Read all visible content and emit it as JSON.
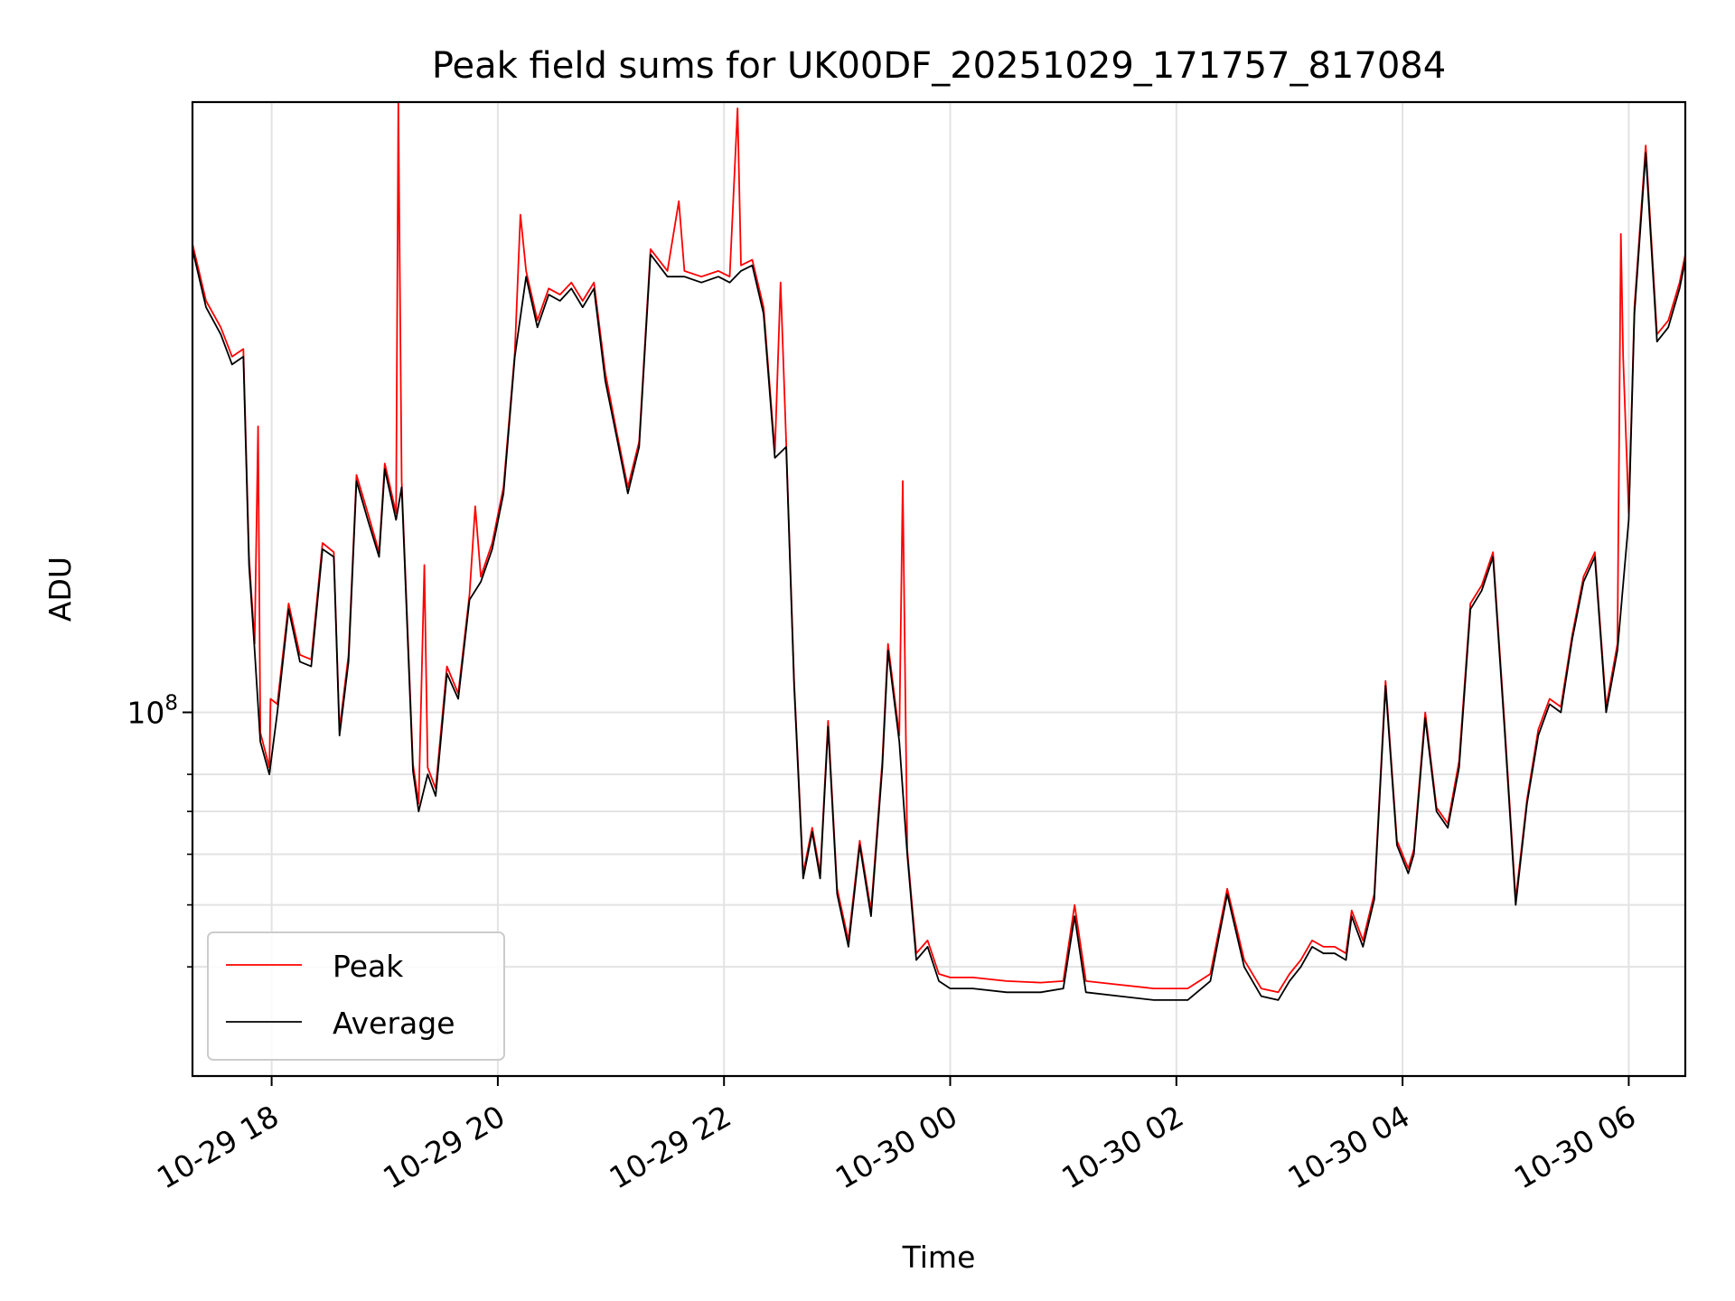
{
  "chart_data": {
    "type": "line",
    "title": "Peak field sums for UK00DF_20251029_171757_817084",
    "xlabel": "Time",
    "ylabel": "ADU",
    "yscale": "log",
    "grid": true,
    "x_unit": "hours since 2025-10-29 17:00",
    "xlim": [
      17.3,
      30.5
    ],
    "ylim": [
      27000000,
      900000000
    ],
    "x_ticks": [
      {
        "value": 18,
        "label": "10-29 18"
      },
      {
        "value": 20,
        "label": "10-29 20"
      },
      {
        "value": 22,
        "label": "10-29 22"
      },
      {
        "value": 24,
        "label": "10-30 00"
      },
      {
        "value": 26,
        "label": "10-30 02"
      },
      {
        "value": 28,
        "label": "10-30 04"
      },
      {
        "value": 30,
        "label": "10-30 06"
      }
    ],
    "y_major_ticks": [
      {
        "value": 100000000,
        "base": "10",
        "exp": "8"
      }
    ],
    "y_minor_ticks": [
      40000000,
      50000000,
      60000000,
      70000000,
      80000000
    ],
    "legend": {
      "placement": "lower-left",
      "entries": [
        "Peak",
        "Average"
      ]
    },
    "series": [
      {
        "name": "Average",
        "color": "#000000",
        "points": [
          [
            17.3,
            530000000
          ],
          [
            17.42,
            430000000
          ],
          [
            17.55,
            390000000
          ],
          [
            17.65,
            350000000
          ],
          [
            17.75,
            360000000
          ],
          [
            17.8,
            170000000
          ],
          [
            17.85,
            125000000
          ],
          [
            17.9,
            90000000
          ],
          [
            17.98,
            80000000
          ],
          [
            18.05,
            100000000
          ],
          [
            18.15,
            145000000
          ],
          [
            18.25,
            120000000
          ],
          [
            18.35,
            118000000
          ],
          [
            18.45,
            180000000
          ],
          [
            18.55,
            175000000
          ],
          [
            18.6,
            92000000
          ],
          [
            18.68,
            120000000
          ],
          [
            18.75,
            230000000
          ],
          [
            18.85,
            200000000
          ],
          [
            18.95,
            175000000
          ],
          [
            19.0,
            240000000
          ],
          [
            19.1,
            200000000
          ],
          [
            19.15,
            225000000
          ],
          [
            19.25,
            81000000
          ],
          [
            19.3,
            70000000
          ],
          [
            19.38,
            80000000
          ],
          [
            19.45,
            74000000
          ],
          [
            19.55,
            115000000
          ],
          [
            19.65,
            105000000
          ],
          [
            19.75,
            150000000
          ],
          [
            19.85,
            160000000
          ],
          [
            19.95,
            180000000
          ],
          [
            20.05,
            220000000
          ],
          [
            20.15,
            360000000
          ],
          [
            20.25,
            480000000
          ],
          [
            20.35,
            400000000
          ],
          [
            20.45,
            450000000
          ],
          [
            20.55,
            440000000
          ],
          [
            20.65,
            460000000
          ],
          [
            20.75,
            430000000
          ],
          [
            20.85,
            460000000
          ],
          [
            20.95,
            330000000
          ],
          [
            21.05,
            270000000
          ],
          [
            21.15,
            220000000
          ],
          [
            21.25,
            260000000
          ],
          [
            21.35,
            520000000
          ],
          [
            21.5,
            480000000
          ],
          [
            21.65,
            480000000
          ],
          [
            21.8,
            470000000
          ],
          [
            21.95,
            480000000
          ],
          [
            22.05,
            470000000
          ],
          [
            22.15,
            490000000
          ],
          [
            22.25,
            500000000
          ],
          [
            22.35,
            420000000
          ],
          [
            22.45,
            250000000
          ],
          [
            22.55,
            260000000
          ],
          [
            22.62,
            110000000
          ],
          [
            22.7,
            55000000
          ],
          [
            22.78,
            65000000
          ],
          [
            22.85,
            55000000
          ],
          [
            22.92,
            95000000
          ],
          [
            23.0,
            52000000
          ],
          [
            23.1,
            43000000
          ],
          [
            23.2,
            62000000
          ],
          [
            23.3,
            48000000
          ],
          [
            23.4,
            82000000
          ],
          [
            23.45,
            125000000
          ],
          [
            23.55,
            90000000
          ],
          [
            23.62,
            60000000
          ],
          [
            23.7,
            41000000
          ],
          [
            23.8,
            43000000
          ],
          [
            23.9,
            38000000
          ],
          [
            24.0,
            37000000
          ],
          [
            24.2,
            37000000
          ],
          [
            24.5,
            36500000
          ],
          [
            24.8,
            36500000
          ],
          [
            25.0,
            37000000
          ],
          [
            25.1,
            48000000
          ],
          [
            25.2,
            36500000
          ],
          [
            25.5,
            36000000
          ],
          [
            25.8,
            35500000
          ],
          [
            26.1,
            35500000
          ],
          [
            26.3,
            38000000
          ],
          [
            26.45,
            52000000
          ],
          [
            26.6,
            40000000
          ],
          [
            26.75,
            36000000
          ],
          [
            26.9,
            35500000
          ],
          [
            27.0,
            38000000
          ],
          [
            27.1,
            40000000
          ],
          [
            27.2,
            43000000
          ],
          [
            27.3,
            42000000
          ],
          [
            27.4,
            42000000
          ],
          [
            27.5,
            41000000
          ],
          [
            27.55,
            48000000
          ],
          [
            27.65,
            43000000
          ],
          [
            27.75,
            51000000
          ],
          [
            27.85,
            110000000
          ],
          [
            27.95,
            62000000
          ],
          [
            28.05,
            56000000
          ],
          [
            28.1,
            60000000
          ],
          [
            28.2,
            98000000
          ],
          [
            28.3,
            70000000
          ],
          [
            28.4,
            66000000
          ],
          [
            28.5,
            82000000
          ],
          [
            28.6,
            145000000
          ],
          [
            28.7,
            155000000
          ],
          [
            28.8,
            175000000
          ],
          [
            28.9,
            95000000
          ],
          [
            29.0,
            50000000
          ],
          [
            29.1,
            72000000
          ],
          [
            29.2,
            92000000
          ],
          [
            29.3,
            103000000
          ],
          [
            29.4,
            100000000
          ],
          [
            29.5,
            130000000
          ],
          [
            29.6,
            160000000
          ],
          [
            29.7,
            175000000
          ],
          [
            29.8,
            100000000
          ],
          [
            29.9,
            125000000
          ],
          [
            30.0,
            200000000
          ],
          [
            30.05,
            420000000
          ],
          [
            30.15,
            750000000
          ],
          [
            30.25,
            380000000
          ],
          [
            30.35,
            400000000
          ],
          [
            30.45,
            460000000
          ],
          [
            30.5,
            510000000
          ]
        ]
      },
      {
        "name": "Peak",
        "color": "#ff0000",
        "points": [
          [
            17.3,
            540000000
          ],
          [
            17.42,
            440000000
          ],
          [
            17.55,
            400000000
          ],
          [
            17.65,
            360000000
          ],
          [
            17.75,
            370000000
          ],
          [
            17.8,
            175000000
          ],
          [
            17.85,
            128000000
          ],
          [
            17.88,
            280000000
          ],
          [
            17.9,
            93000000
          ],
          [
            17.98,
            82000000
          ],
          [
            17.99,
            105000000
          ],
          [
            18.05,
            103000000
          ],
          [
            18.15,
            148000000
          ],
          [
            18.25,
            123000000
          ],
          [
            18.35,
            121000000
          ],
          [
            18.45,
            184000000
          ],
          [
            18.55,
            178000000
          ],
          [
            18.6,
            94000000
          ],
          [
            18.68,
            123000000
          ],
          [
            18.75,
            235000000
          ],
          [
            18.85,
            205000000
          ],
          [
            18.95,
            178000000
          ],
          [
            19.0,
            245000000
          ],
          [
            19.1,
            205000000
          ],
          [
            19.12,
            900000000
          ],
          [
            19.15,
            230000000
          ],
          [
            19.25,
            83000000
          ],
          [
            19.3,
            72000000
          ],
          [
            19.35,
            170000000
          ],
          [
            19.38,
            82000000
          ],
          [
            19.45,
            76000000
          ],
          [
            19.55,
            118000000
          ],
          [
            19.65,
            107000000
          ],
          [
            19.75,
            153000000
          ],
          [
            19.8,
            210000000
          ],
          [
            19.85,
            163000000
          ],
          [
            19.95,
            184000000
          ],
          [
            20.05,
            225000000
          ],
          [
            20.15,
            365000000
          ],
          [
            20.2,
            600000000
          ],
          [
            20.25,
            490000000
          ],
          [
            20.35,
            410000000
          ],
          [
            20.45,
            460000000
          ],
          [
            20.55,
            450000000
          ],
          [
            20.65,
            470000000
          ],
          [
            20.75,
            440000000
          ],
          [
            20.85,
            470000000
          ],
          [
            20.95,
            340000000
          ],
          [
            21.05,
            275000000
          ],
          [
            21.15,
            225000000
          ],
          [
            21.25,
            265000000
          ],
          [
            21.35,
            530000000
          ],
          [
            21.5,
            490000000
          ],
          [
            21.6,
            630000000
          ],
          [
            21.65,
            490000000
          ],
          [
            21.8,
            480000000
          ],
          [
            21.95,
            490000000
          ],
          [
            22.05,
            480000000
          ],
          [
            22.12,
            880000000
          ],
          [
            22.15,
            500000000
          ],
          [
            22.25,
            510000000
          ],
          [
            22.35,
            430000000
          ],
          [
            22.45,
            255000000
          ],
          [
            22.5,
            470000000
          ],
          [
            22.55,
            265000000
          ],
          [
            22.62,
            112000000
          ],
          [
            22.7,
            56000000
          ],
          [
            22.78,
            66000000
          ],
          [
            22.85,
            56000000
          ],
          [
            22.92,
            97000000
          ],
          [
            23.0,
            53000000
          ],
          [
            23.1,
            44000000
          ],
          [
            23.2,
            63000000
          ],
          [
            23.3,
            49000000
          ],
          [
            23.4,
            84000000
          ],
          [
            23.45,
            128000000
          ],
          [
            23.55,
            92000000
          ],
          [
            23.58,
            230000000
          ],
          [
            23.62,
            61000000
          ],
          [
            23.7,
            42000000
          ],
          [
            23.8,
            44000000
          ],
          [
            23.9,
            39000000
          ],
          [
            24.0,
            38500000
          ],
          [
            24.2,
            38500000
          ],
          [
            24.5,
            38000000
          ],
          [
            24.8,
            37800000
          ],
          [
            25.0,
            38000000
          ],
          [
            25.1,
            50000000
          ],
          [
            25.2,
            38000000
          ],
          [
            25.5,
            37500000
          ],
          [
            25.8,
            37000000
          ],
          [
            26.1,
            37000000
          ],
          [
            26.3,
            39000000
          ],
          [
            26.45,
            53000000
          ],
          [
            26.6,
            41000000
          ],
          [
            26.75,
            37000000
          ],
          [
            26.9,
            36500000
          ],
          [
            27.0,
            39000000
          ],
          [
            27.1,
            41000000
          ],
          [
            27.2,
            44000000
          ],
          [
            27.3,
            43000000
          ],
          [
            27.4,
            43000000
          ],
          [
            27.5,
            42000000
          ],
          [
            27.55,
            49000000
          ],
          [
            27.65,
            44000000
          ],
          [
            27.75,
            52000000
          ],
          [
            27.85,
            112000000
          ],
          [
            27.95,
            63000000
          ],
          [
            28.05,
            57000000
          ],
          [
            28.1,
            61000000
          ],
          [
            28.2,
            100000000
          ],
          [
            28.3,
            71000000
          ],
          [
            28.4,
            67000000
          ],
          [
            28.5,
            84000000
          ],
          [
            28.6,
            148000000
          ],
          [
            28.7,
            158000000
          ],
          [
            28.8,
            178000000
          ],
          [
            28.9,
            97000000
          ],
          [
            29.0,
            51000000
          ],
          [
            29.1,
            73000000
          ],
          [
            29.2,
            94000000
          ],
          [
            29.3,
            105000000
          ],
          [
            29.4,
            102000000
          ],
          [
            29.5,
            132000000
          ],
          [
            29.6,
            163000000
          ],
          [
            29.7,
            178000000
          ],
          [
            29.8,
            102000000
          ],
          [
            29.9,
            128000000
          ],
          [
            29.93,
            560000000
          ],
          [
            29.95,
            360000000
          ],
          [
            30.0,
            205000000
          ],
          [
            30.05,
            430000000
          ],
          [
            30.15,
            770000000
          ],
          [
            30.25,
            390000000
          ],
          [
            30.35,
            410000000
          ],
          [
            30.45,
            470000000
          ],
          [
            30.5,
            520000000
          ]
        ]
      }
    ]
  }
}
